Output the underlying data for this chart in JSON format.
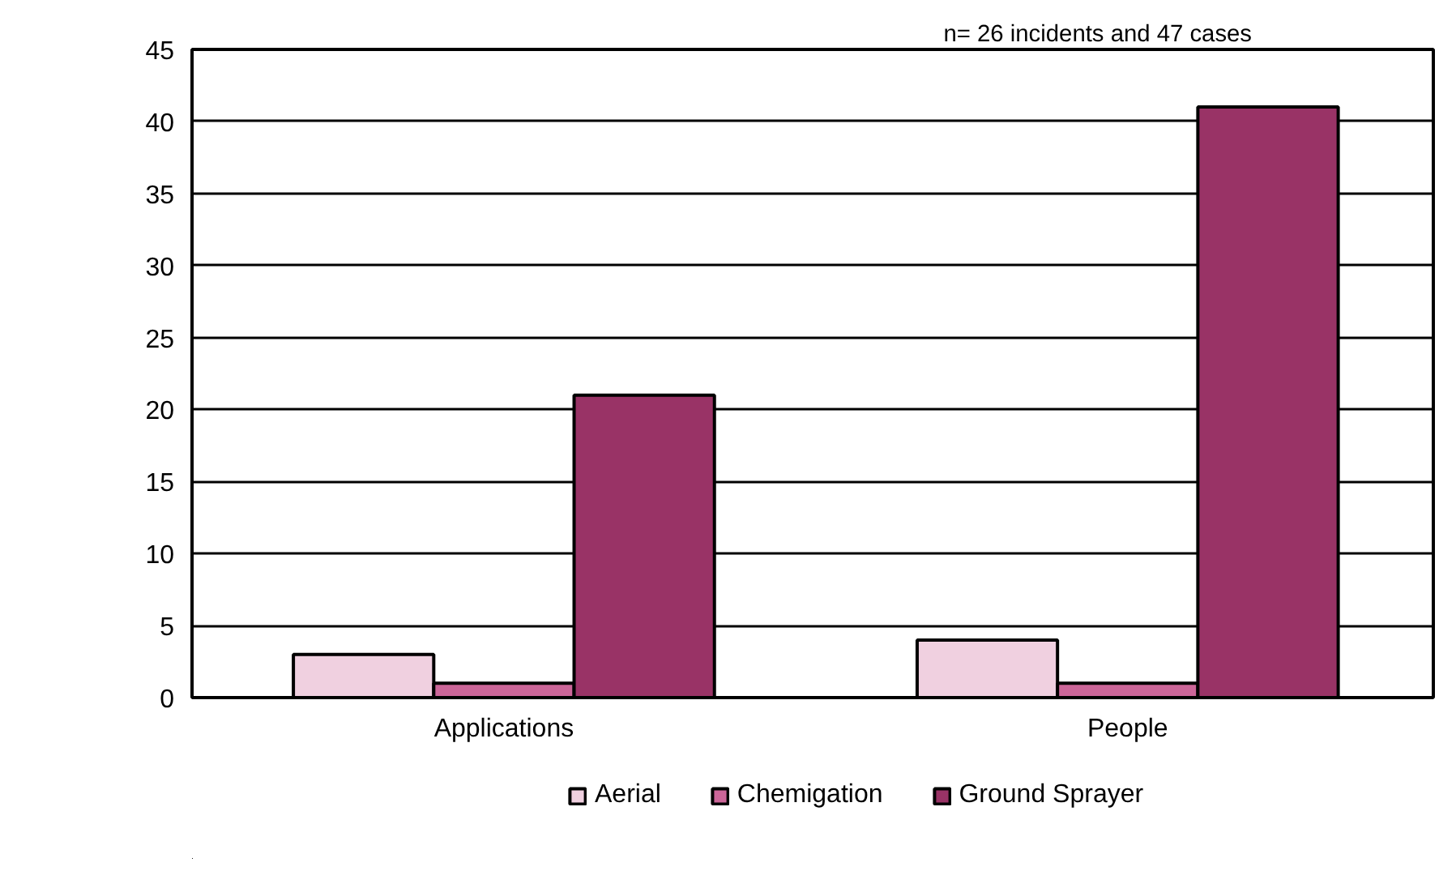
{
  "chart_data": {
    "type": "bar",
    "categories": [
      "Applications",
      "People"
    ],
    "series": [
      {
        "name": "Aerial",
        "color": "#f0d0e0",
        "values": [
          3,
          4
        ]
      },
      {
        "name": "Chemigation",
        "color": "#cc6699",
        "values": [
          1,
          1
        ]
      },
      {
        "name": "Ground Sprayer",
        "color": "#993366",
        "values": [
          21,
          41
        ]
      }
    ],
    "ylim": [
      0,
      45
    ],
    "yticks": [
      0,
      5,
      10,
      15,
      20,
      25,
      30,
      35,
      40,
      45
    ],
    "grid": "y",
    "legend": "bottom",
    "annotations": [
      "n= 26 incidents and 47 cases"
    ]
  }
}
